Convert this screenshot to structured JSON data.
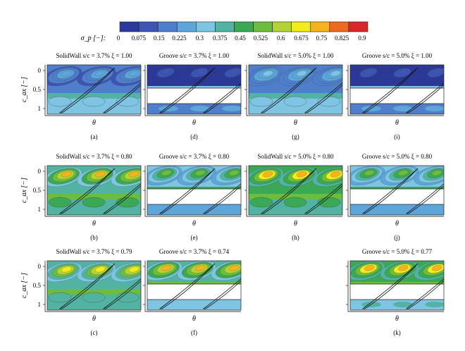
{
  "colorbar": {
    "label": "σ_p [−]:",
    "ticks": [
      "0",
      "0.075",
      "0.15",
      "0.225",
      "0.3",
      "0.375",
      "0.45",
      "0.525",
      "0.6",
      "0.675",
      "0.75",
      "0.825",
      "0.9"
    ],
    "colors": [
      "#2b3a9a",
      "#3f55b4",
      "#4f7fcb",
      "#5da6da",
      "#7fc5e3",
      "#53b3a3",
      "#3aa854",
      "#6cbd3f",
      "#b3d335",
      "#f3eb1d",
      "#f5b320",
      "#ee6a22",
      "#d8282a"
    ]
  },
  "axes": {
    "ylabel": "c_ax [−]",
    "xlabel": "θ",
    "yticks": [
      "0",
      "0.5",
      "1"
    ]
  },
  "panels": [
    {
      "id": "a",
      "title": "SolidWall s/c = 3.7% ξ = 1.00",
      "caption": "(a)",
      "row": 0,
      "col": 0,
      "sigma_level": 0.25,
      "gap": false,
      "ylabel": true
    },
    {
      "id": "d",
      "title": "Groove s/c = 3.7% ξ = 1.00",
      "caption": "(d)",
      "row": 0,
      "col": 1,
      "sigma_level": 0.05,
      "gap": true,
      "ylabel": false
    },
    {
      "id": "g",
      "title": "SolidWall s/c = 5.0% ξ = 1.00",
      "caption": "(g)",
      "row": 0,
      "col": 2,
      "sigma_level": 0.3,
      "gap": false,
      "ylabel": false
    },
    {
      "id": "i",
      "title": "Groove s/c = 5.0% ξ = 1.00",
      "caption": "(i)",
      "row": 0,
      "col": 3,
      "sigma_level": 0.05,
      "gap": true,
      "ylabel": false
    },
    {
      "id": "b",
      "title": "SolidWall s/c = 3.7% ξ = 0.80",
      "caption": "(b)",
      "row": 1,
      "col": 0,
      "sigma_level": 0.8,
      "gap": false,
      "ylabel": true
    },
    {
      "id": "e",
      "title": "Groove s/c = 3.7% ξ = 0.80",
      "caption": "(e)",
      "row": 1,
      "col": 1,
      "sigma_level": 0.6,
      "gap": true,
      "ylabel": false
    },
    {
      "id": "h",
      "title": "SolidWall s/c = 5.0% ξ = 0.80",
      "caption": "(h)",
      "row": 1,
      "col": 2,
      "sigma_level": 0.85,
      "gap": false,
      "ylabel": false
    },
    {
      "id": "j",
      "title": "Groove s/c = 5.0% ξ = 0.80",
      "caption": "(j)",
      "row": 1,
      "col": 3,
      "sigma_level": 0.6,
      "gap": true,
      "ylabel": false
    },
    {
      "id": "c",
      "title": "SolidWall s/c = 3.7% ξ = 0.79",
      "caption": "(c)",
      "row": 2,
      "col": 0,
      "sigma_level": 0.75,
      "gap": false,
      "ylabel": true
    },
    {
      "id": "f",
      "title": "Groove s/c = 3.7% ξ = 0.74",
      "caption": "(f)",
      "row": 2,
      "col": 1,
      "sigma_level": 0.8,
      "gap": true,
      "ylabel": false
    },
    {
      "id": "k",
      "title": "Groove s/c = 5.0% ξ = 0.77",
      "caption": "(k)",
      "row": 2,
      "col": 3,
      "sigma_level": 0.85,
      "gap": true,
      "ylabel": false
    }
  ]
}
